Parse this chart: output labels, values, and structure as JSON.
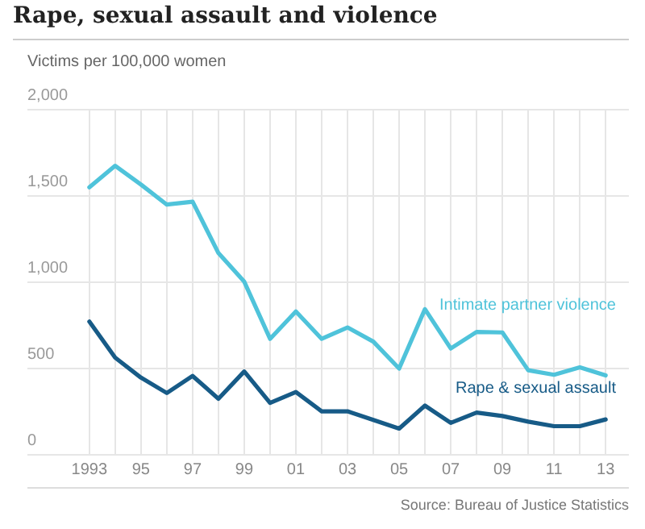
{
  "chart_data": {
    "type": "line",
    "title": "Rape, sexual assault and violence",
    "ylabel": "Victims per 100,000 women",
    "x": [
      1993,
      1994,
      1995,
      1996,
      1997,
      1998,
      1999,
      2000,
      2001,
      2002,
      2003,
      2004,
      2005,
      2006,
      2007,
      2008,
      2009,
      2010,
      2011,
      2012,
      2013
    ],
    "series": [
      {
        "name": "Intimate partner violence",
        "color": "#4fc3da",
        "values": [
          1550,
          1675,
          1566,
          1450,
          1467,
          1169,
          1003,
          672,
          831,
          672,
          738,
          656,
          500,
          844,
          616,
          712,
          709,
          490,
          464,
          507,
          460
        ]
      },
      {
        "name": "Rape & sexual assault",
        "color": "#175b87",
        "values": [
          772,
          563,
          447,
          358,
          457,
          325,
          483,
          301,
          364,
          252,
          252,
          202,
          152,
          285,
          185,
          245,
          225,
          192,
          166,
          166,
          205
        ]
      }
    ],
    "xlim": [
      1990.6,
      2013.9
    ],
    "xticks": [
      1993,
      {
        "value": 1994,
        "label": null
      },
      {
        "value": 1995,
        "label": "95"
      },
      {
        "value": 1996,
        "label": null
      },
      {
        "value": 1997,
        "label": "97"
      },
      {
        "value": 1998,
        "label": null
      },
      {
        "value": 1999,
        "label": "99"
      },
      {
        "value": 2000,
        "label": null
      },
      {
        "value": 2001,
        "label": "01"
      },
      {
        "value": 2002,
        "label": null
      },
      {
        "value": 2003,
        "label": "03"
      },
      {
        "value": 2004,
        "label": null
      },
      {
        "value": 2005,
        "label": "05"
      },
      {
        "value": 2006,
        "label": null
      },
      {
        "value": 2007,
        "label": "07"
      },
      {
        "value": 2008,
        "label": null
      },
      {
        "value": 2009,
        "label": "09"
      },
      {
        "value": 2010,
        "label": null
      },
      {
        "value": 2011,
        "label": "11"
      },
      {
        "value": 2012,
        "label": null
      },
      {
        "value": 2013,
        "label": "13"
      }
    ],
    "ylim": [
      0,
      2000
    ],
    "yticks": [
      0,
      500,
      {
        "value": 1000,
        "label": "1,000"
      },
      {
        "value": 1500,
        "label": "1,500"
      },
      {
        "value": 2000,
        "label": "2,000"
      }
    ],
    "grid": true,
    "legend": false,
    "marker": "none",
    "line_style": "solid",
    "annotations": [
      "Source: Bureau of Justice Statistics"
    ]
  }
}
